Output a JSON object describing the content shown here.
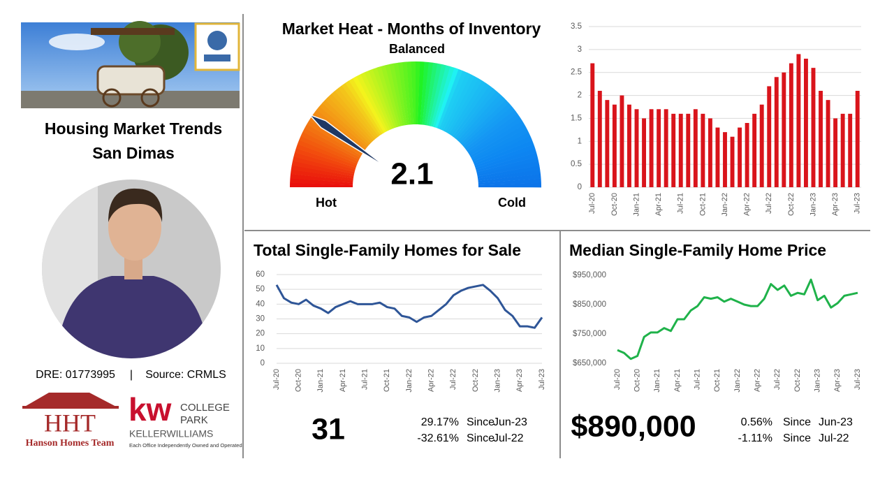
{
  "sidebar": {
    "title_lines": [
      "Housing Market Trends",
      "San Dimas"
    ],
    "dre": "DRE: 01773995",
    "separator": "|",
    "source": "Source: CRMLS",
    "logos": {
      "hht": "HHT",
      "hht_name": "Hanson Homes Team",
      "kw": "kw",
      "kw_line1": "COLLEGE",
      "kw_line2": "PARK",
      "kw_brand": "KELLERWILLIAMS",
      "kw_note": "Each Office Independently Owned and Operated"
    }
  },
  "chart_data": [
    {
      "type": "gauge",
      "title": "Market Heat - Months of Inventory",
      "value": 2.1,
      "ylim": [
        0,
        11
      ],
      "color": "#1f3864",
      "labels": {
        "top": "Balanced",
        "low": "Hot",
        "high": "Cold"
      }
    },
    {
      "type": "bar",
      "color": "#d9141b",
      "grid": true,
      "ylim": [
        0,
        3.5
      ],
      "yticks": [
        0,
        0.5,
        1,
        1.5,
        2,
        2.5,
        3,
        3.5
      ],
      "categories": [
        "Jul-20",
        null,
        null,
        "Oct-20",
        null,
        null,
        "Jan-21",
        null,
        null,
        "Apr-21",
        null,
        null,
        "Jul-21",
        null,
        null,
        "Oct-21",
        null,
        null,
        "Jan-22",
        null,
        null,
        "Apr-22",
        null,
        null,
        "Jul-22",
        null,
        null,
        "Oct-22",
        null,
        null,
        "Jan-23",
        null,
        null,
        "Apr-23",
        null,
        null,
        "Jul-23"
      ],
      "values": [
        2.7,
        2.1,
        1.9,
        1.8,
        2.0,
        1.8,
        1.7,
        1.5,
        1.7,
        1.7,
        1.7,
        1.6,
        1.6,
        1.6,
        1.7,
        1.6,
        1.5,
        1.3,
        1.2,
        1.1,
        1.3,
        1.4,
        1.6,
        1.8,
        2.2,
        2.4,
        2.5,
        2.7,
        2.9,
        2.8,
        2.6,
        2.1,
        1.9,
        1.5,
        1.6,
        1.6,
        2.1
      ]
    },
    {
      "type": "line",
      "title": "Total Single-Family Homes for Sale",
      "color": "#2e5597",
      "grid": true,
      "ylim": [
        0,
        60
      ],
      "yticks": [
        0,
        10,
        20,
        30,
        40,
        50,
        60
      ],
      "categories": [
        "Jul-20",
        null,
        null,
        "Oct-20",
        null,
        null,
        "Jan-21",
        null,
        null,
        "Apr-21",
        null,
        null,
        "Jul-21",
        null,
        null,
        "Oct-21",
        null,
        null,
        "Jan-22",
        null,
        null,
        "Apr-22",
        null,
        null,
        "Jul-22",
        null,
        null,
        "Oct-22",
        null,
        null,
        "Jan-23",
        null,
        null,
        "Apr-23",
        null,
        null,
        "Jul-23"
      ],
      "values": [
        53,
        44,
        41,
        40,
        43,
        39,
        37,
        34,
        38,
        40,
        42,
        40,
        40,
        40,
        41,
        38,
        37,
        32,
        31,
        28,
        31,
        32,
        36,
        40,
        46,
        49,
        51,
        52,
        53,
        49,
        44,
        36,
        32,
        25,
        25,
        24,
        31
      ],
      "summary": {
        "value": "31",
        "changes": [
          [
            "29.17%",
            "Since",
            "Jun-23"
          ],
          [
            "-32.61%",
            "Since",
            "Jul-22"
          ]
        ]
      }
    },
    {
      "type": "line",
      "title": "Median Single-Family Home Price",
      "color": "#1fb24a",
      "grid": false,
      "ylim": [
        650000,
        950000
      ],
      "yticks": [
        {
          "value": 650000,
          "label": "$650,000"
        },
        {
          "value": 750000,
          "label": "$750,000"
        },
        {
          "value": 850000,
          "label": "$850,000"
        },
        {
          "value": 950000,
          "label": "$950,000"
        }
      ],
      "categories": [
        "Jul-20",
        null,
        null,
        "Oct-20",
        null,
        null,
        "Jan-21",
        null,
        null,
        "Apr-21",
        null,
        null,
        "Jul-21",
        null,
        null,
        "Oct-21",
        null,
        null,
        "Jan-22",
        null,
        null,
        "Apr-22",
        null,
        null,
        "Jul-22",
        null,
        null,
        "Oct-22",
        null,
        null,
        "Jan-23",
        null,
        null,
        "Apr-23",
        null,
        null,
        "Jul-23"
      ],
      "values": [
        695000,
        685000,
        665000,
        675000,
        740000,
        755000,
        755000,
        770000,
        760000,
        800000,
        800000,
        830000,
        845000,
        875000,
        870000,
        875000,
        860000,
        870000,
        860000,
        850000,
        845000,
        845000,
        870000,
        920000,
        900000,
        915000,
        880000,
        890000,
        885000,
        935000,
        865000,
        880000,
        840000,
        855000,
        880000,
        885000,
        890000
      ],
      "summary": {
        "value": "$890,000",
        "changes": [
          [
            "0.56%",
            "Since",
            "Jun-23"
          ],
          [
            "-1.11%",
            "Since",
            "Jul-22"
          ]
        ]
      }
    }
  ]
}
